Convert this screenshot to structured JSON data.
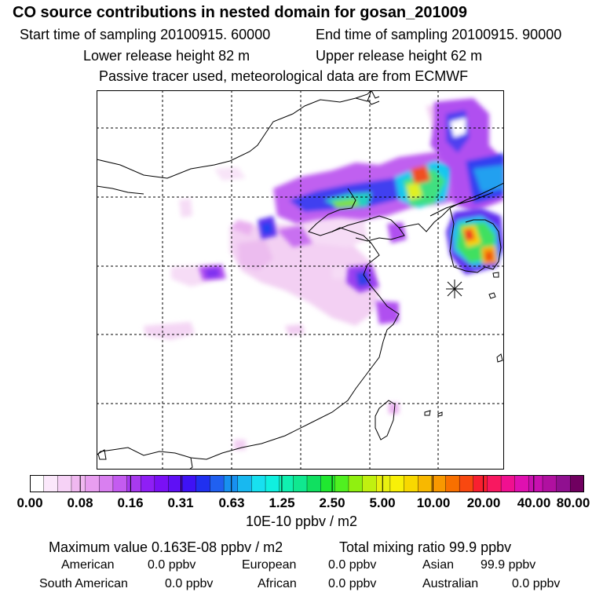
{
  "title": "CO  source contributions in nested domain for gosan_201009",
  "header": {
    "start_label": "Start time of sampling 20100915. 60000",
    "end_label": "End time of sampling 20100915. 90000",
    "lower_label": "Lower release height   82 m",
    "upper_label": "Upper release height   62 m",
    "tracer_note": "Passive tracer used, meteorological data are from ECMWF"
  },
  "colorbar": {
    "ticks": [
      "0.00",
      "0.08",
      "0.16",
      "0.31",
      "0.63",
      "1.25",
      "2.50",
      "5.00",
      "10.00",
      "20.00",
      "40.00",
      "80.00"
    ],
    "units": "10E-10 ppbv / m2",
    "colors": [
      "#ffffff",
      "#fbe8fb",
      "#f6d2f6",
      "#f0b8f0",
      "#e89ef0",
      "#d97ff0",
      "#c45cf0",
      "#a83aef",
      "#8f1ff5",
      "#7a10f5",
      "#5f10f5",
      "#3f12f5",
      "#2030f0",
      "#2060f0",
      "#1890f0",
      "#18b8f0",
      "#18e0f0",
      "#10f0e0",
      "#10f0b0",
      "#10e890",
      "#10e060",
      "#20e830",
      "#50f020",
      "#90f010",
      "#c0f010",
      "#e8f010",
      "#f8f008",
      "#f8d800",
      "#f8b800",
      "#f89800",
      "#f87000",
      "#f84810",
      "#f82030",
      "#f81860",
      "#f01090",
      "#e010b0",
      "#c810b0",
      "#b010a0",
      "#901090",
      "#700060"
    ]
  },
  "stats": {
    "max_label": "Maximum value  0.163E-08 ppbv / m2",
    "total_label": "Total mixing ratio      99.9 ppbv"
  },
  "regions": [
    {
      "name": "American",
      "value": "0.0 ppbv"
    },
    {
      "name": "European",
      "value": "0.0 ppbv"
    },
    {
      "name": "Asian",
      "value": "99.9 ppbv"
    },
    {
      "name": "South American",
      "value": "0.0 ppbv"
    },
    {
      "name": "African",
      "value": "0.0 ppbv"
    },
    {
      "name": "Australian",
      "value": "0.0 ppbv"
    }
  ]
}
